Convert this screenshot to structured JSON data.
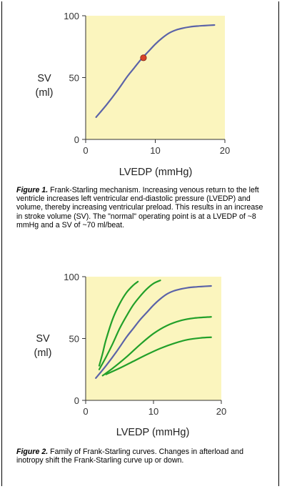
{
  "chart_data": [
    {
      "type": "line",
      "xlabel": "LVEDP (mmHg)",
      "ylabel": "SV",
      "ylabel_unit": "(ml)",
      "xlim": [
        0,
        20
      ],
      "ylim": [
        0,
        100
      ],
      "xticks": [
        0,
        10,
        20
      ],
      "yticks": [
        0,
        50,
        100
      ],
      "background": "#fbf5be",
      "grid": false,
      "series": [
        {
          "color": "#5b63a8",
          "x": [
            1.5,
            3,
            4.5,
            6,
            7,
            8,
            9,
            10,
            11,
            12,
            13,
            14,
            15,
            16,
            17,
            18.5
          ],
          "y": [
            18,
            28,
            39,
            51,
            58,
            65,
            71,
            77,
            82,
            86,
            88.5,
            90,
            91,
            91.6,
            92,
            92.5
          ]
        }
      ],
      "point": {
        "x": 8.3,
        "y": 66,
        "color": "#d8432a"
      },
      "caption": {
        "label": "Figure 1.",
        "text": "Frank-Starling mechanism. Increasing venous return to the left ventricle increases left ventricular end-diastolic pressure (LVEDP) and volume, thereby increasing ventricular preload. This results in an increase in stroke volume (SV). The \"normal\" operating point is at a LVEDP of ~8 mmHg and a SV of ~70 ml/beat."
      }
    },
    {
      "type": "line",
      "xlabel": "LVEDP (mmHg)",
      "ylabel": "SV",
      "ylabel_unit": "(ml)",
      "xlim": [
        0,
        20
      ],
      "ylim": [
        0,
        100
      ],
      "xticks": [
        0,
        10,
        20
      ],
      "yticks": [
        0,
        50,
        100
      ],
      "background": "#fbf5be",
      "grid": false,
      "series": [
        {
          "color": "#22a02a",
          "x": [
            2,
            2.5,
            3,
            4,
            5,
            6,
            7,
            7.7
          ],
          "y": [
            28,
            38,
            49,
            66,
            78,
            87,
            93,
            96
          ]
        },
        {
          "color": "#22a02a",
          "x": [
            2,
            3,
            4,
            5,
            6,
            7,
            8,
            9,
            10,
            11
          ],
          "y": [
            25,
            35,
            46,
            58,
            68,
            77,
            84,
            90,
            94.5,
            97
          ]
        },
        {
          "color": "#5b63a8",
          "x": [
            1.5,
            3,
            4.5,
            6,
            7,
            8,
            9,
            10,
            11,
            12,
            13,
            14,
            15,
            16,
            17,
            18.5
          ],
          "y": [
            18,
            28,
            39,
            51,
            58,
            65,
            71,
            77,
            82,
            86,
            88.5,
            90,
            91,
            91.6,
            92,
            92.5
          ]
        },
        {
          "color": "#22a02a",
          "x": [
            2.5,
            4,
            6,
            8,
            10,
            12,
            14,
            16,
            18.5
          ],
          "y": [
            20,
            26,
            35,
            45,
            54,
            60.5,
            64.5,
            66.5,
            67.5
          ]
        },
        {
          "color": "#22a02a",
          "x": [
            3,
            5,
            7,
            9,
            11,
            13,
            15,
            17,
            18.5
          ],
          "y": [
            21,
            26,
            31.5,
            37,
            42,
            46,
            49,
            50.5,
            51
          ]
        }
      ],
      "caption": {
        "label": "Figure 2.",
        "text": "Family of Frank-Starling curves. Changes in afterload and inotropy shift the Frank-Starling curve up or down."
      }
    }
  ]
}
